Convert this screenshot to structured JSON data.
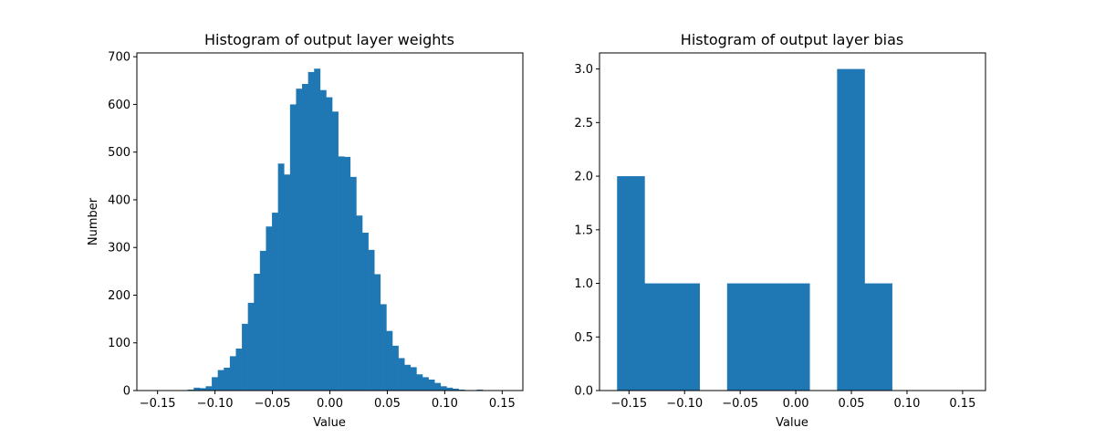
{
  "figure": {
    "background": "#ffffff"
  },
  "chart_data": [
    {
      "type": "bar",
      "title": "Histogram of output layer weights",
      "xlabel": "Value",
      "ylabel": "Number",
      "xlim": [
        -0.168,
        0.168
      ],
      "ylim": [
        0,
        708
      ],
      "xticks": [
        -0.15,
        -0.1,
        -0.05,
        0.0,
        0.05,
        0.1,
        0.15
      ],
      "xtick_labels": [
        "−0.15",
        "−0.10",
        "−0.05",
        "0.00",
        "0.05",
        "0.10",
        "0.15"
      ],
      "yticks": [
        0,
        100,
        200,
        300,
        400,
        500,
        600,
        700
      ],
      "ytick_labels": [
        "0",
        "100",
        "200",
        "300",
        "400",
        "500",
        "600",
        "700"
      ],
      "bin_start": -0.1552,
      "bin_width": 0.00524,
      "values": [
        0,
        0,
        0,
        0,
        0,
        1,
        2,
        6,
        5,
        9,
        28,
        43,
        48,
        72,
        88,
        140,
        184,
        245,
        293,
        344,
        373,
        476,
        453,
        600,
        633,
        643,
        668,
        675,
        630,
        615,
        585,
        491,
        490,
        448,
        367,
        331,
        295,
        244,
        181,
        125,
        94,
        68,
        54,
        49,
        34,
        28,
        23,
        16,
        9,
        6,
        4,
        2,
        1,
        1,
        2
      ],
      "color": "#1f77b4",
      "grid": false
    },
    {
      "type": "bar",
      "title": "Histogram of output layer bias",
      "xlabel": "Value",
      "ylabel": "",
      "xlim": [
        -0.1765,
        0.1706
      ],
      "ylim": [
        0,
        3.15
      ],
      "xticks": [
        -0.15,
        -0.1,
        -0.05,
        0.0,
        0.05,
        0.1,
        0.15
      ],
      "xtick_labels": [
        "−0.15",
        "−0.10",
        "−0.05",
        "0.00",
        "0.05",
        "0.10",
        "0.15"
      ],
      "yticks": [
        0,
        0.5,
        1.0,
        1.5,
        2.0,
        2.5,
        3.0
      ],
      "ytick_labels": [
        "0.0",
        "0.5",
        "1.0",
        "1.5",
        "2.0",
        "2.5",
        "3.0"
      ],
      "bin_start": -0.1607,
      "bin_width": 0.02473,
      "values": [
        2,
        1,
        1,
        0,
        1,
        1,
        1,
        0,
        3,
        1
      ],
      "color": "#1f77b4",
      "grid": false
    }
  ]
}
